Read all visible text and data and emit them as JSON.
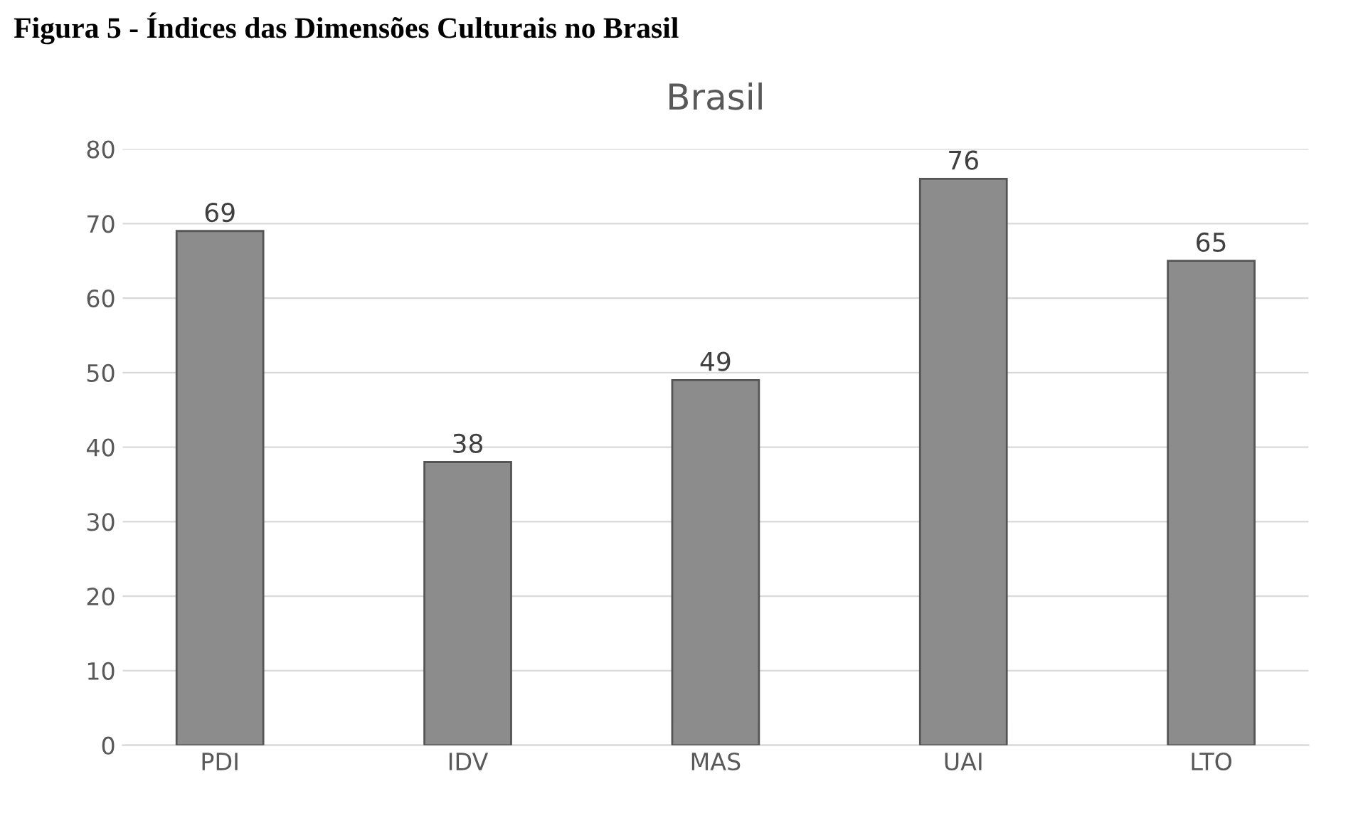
{
  "chart_data": {
    "type": "bar",
    "title": "Brasil",
    "annotations": [
      "Figura 5 - Índices das Dimensões Culturais no Brasil"
    ],
    "categories": [
      "PDI",
      "IDV",
      "MAS",
      "UAI",
      "LTO"
    ],
    "values": [
      69,
      38,
      49,
      76,
      65
    ],
    "color": "#8c8c8c",
    "ylim": [
      0,
      80
    ],
    "yticks": [
      0,
      10,
      20,
      30,
      40,
      50,
      60,
      70,
      80
    ],
    "grid": "y",
    "data_labels": true
  }
}
